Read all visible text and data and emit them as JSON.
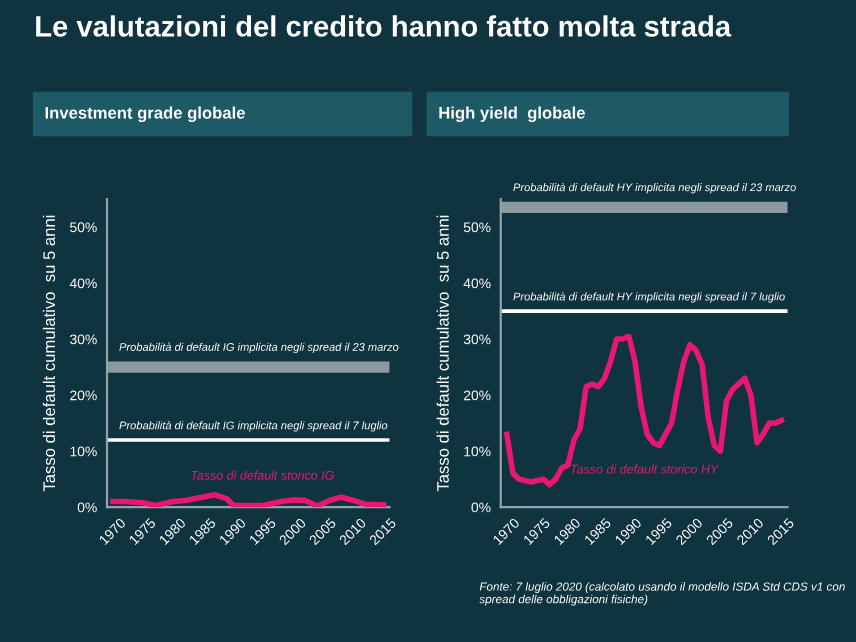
{
  "chart_data": [
    {
      "type": "line",
      "title": "Le valutazioni del credito hanno fatto molta strada",
      "subtitle": "Investment grade globale",
      "ylabel": "Tasso di default cumulativo  su 5 anni",
      "x": [
        1970,
        1972,
        1975,
        1977,
        1980,
        1982,
        1985,
        1987,
        1989,
        1990,
        1995,
        1998,
        2000,
        2002,
        2004,
        2006,
        2008,
        2010,
        2012,
        2015
      ],
      "series": [
        {
          "color": "#e8176f",
          "values": [
            1,
            1,
            0.8,
            0.3,
            1,
            1.2,
            1.8,
            2.2,
            1.5,
            0.3,
            0.3,
            1,
            1.3,
            1.2,
            0.2,
            1.2,
            1.8,
            1.2,
            0.5,
            0.4
          ]
        }
      ],
      "xlim": [
        1969,
        2016
      ],
      "xticks": [
        1970,
        1975,
        1980,
        1985,
        1990,
        1995,
        2000,
        2005,
        2010,
        2015
      ],
      "ylim": [
        0,
        55
      ],
      "yticks": [
        {
          "value": 0,
          "label": "0%"
        },
        {
          "value": 10,
          "label": "10%"
        },
        {
          "value": 20,
          "label": "20%"
        },
        {
          "value": 30,
          "label": "30%"
        },
        {
          "value": 40,
          "label": "40%"
        },
        {
          "value": 50,
          "label": "50%"
        }
      ],
      "bands": [
        {
          "axis": "y",
          "from": 24,
          "to": 26,
          "label": "Probabilità di default IG implicita negli spread il 23 marzo",
          "color": "#8a9a9e"
        }
      ],
      "ref_lines": [
        {
          "axis": "y",
          "value": 12,
          "label": "Probabilità di default IG implicita negli spread il 7 luglio",
          "color": "#ffffff"
        }
      ],
      "annotations": [
        "Tasso di default storico IG"
      ],
      "grid": false,
      "legend": false
    },
    {
      "type": "line",
      "subtitle": "High yield  globale",
      "ylabel": "Tasso di default cumulativo  su 5 anni",
      "x": [
        1970,
        1971,
        1972,
        1974,
        1976,
        1977,
        1978,
        1979,
        1980,
        1981,
        1982,
        1983,
        1984,
        1985,
        1986,
        1987,
        1988,
        1989,
        1990,
        1991,
        1992,
        1993,
        1994,
        1995,
        1996,
        1997,
        1998,
        1999,
        2000,
        2001,
        2002,
        2003,
        2004,
        2005,
        2006,
        2007,
        2008,
        2009,
        2010,
        2011,
        2012,
        2013,
        2014,
        2015
      ],
      "series": [
        {
          "color": "#e8176f",
          "values": [
            13,
            6,
            5,
            4.5,
            5,
            4,
            5,
            7,
            7.5,
            12,
            14,
            21.5,
            22,
            21.5,
            23,
            26,
            30,
            30,
            30.5,
            26,
            18,
            13,
            11.5,
            11,
            13,
            15,
            21,
            26,
            29,
            28,
            25.5,
            16,
            11,
            10,
            19,
            21,
            22,
            23,
            20,
            11.5,
            13,
            15,
            15,
            15.5
          ]
        }
      ],
      "xlim": [
        1969,
        2016
      ],
      "xticks": [
        1970,
        1975,
        1980,
        1985,
        1990,
        1995,
        2000,
        2005,
        2010,
        2015
      ],
      "ylim": [
        0,
        55
      ],
      "yticks": [
        {
          "value": 0,
          "label": "0%"
        },
        {
          "value": 10,
          "label": "10%"
        },
        {
          "value": 20,
          "label": "20%"
        },
        {
          "value": 30,
          "label": "30%"
        },
        {
          "value": 40,
          "label": "40%"
        },
        {
          "value": 50,
          "label": "50%"
        }
      ],
      "bands": [
        {
          "axis": "y",
          "from": 52.5,
          "to": 54.5,
          "label": "Probabilità di default HY implicita negli spread il 23 marzo",
          "color": "#8a9a9e"
        }
      ],
      "ref_lines": [
        {
          "axis": "y",
          "value": 35,
          "label": "Probabilità di default HY implicita negli spread il 7 luglio",
          "color": "#ffffff"
        }
      ],
      "annotations": [
        "Tasso di default storico HY",
        "Fonte: 7 luglio 2020 (calcolato usando il modello ISDA Std CDS v1 con spread delle obbligazioni fisiche)"
      ],
      "grid": false,
      "legend": false
    }
  ]
}
